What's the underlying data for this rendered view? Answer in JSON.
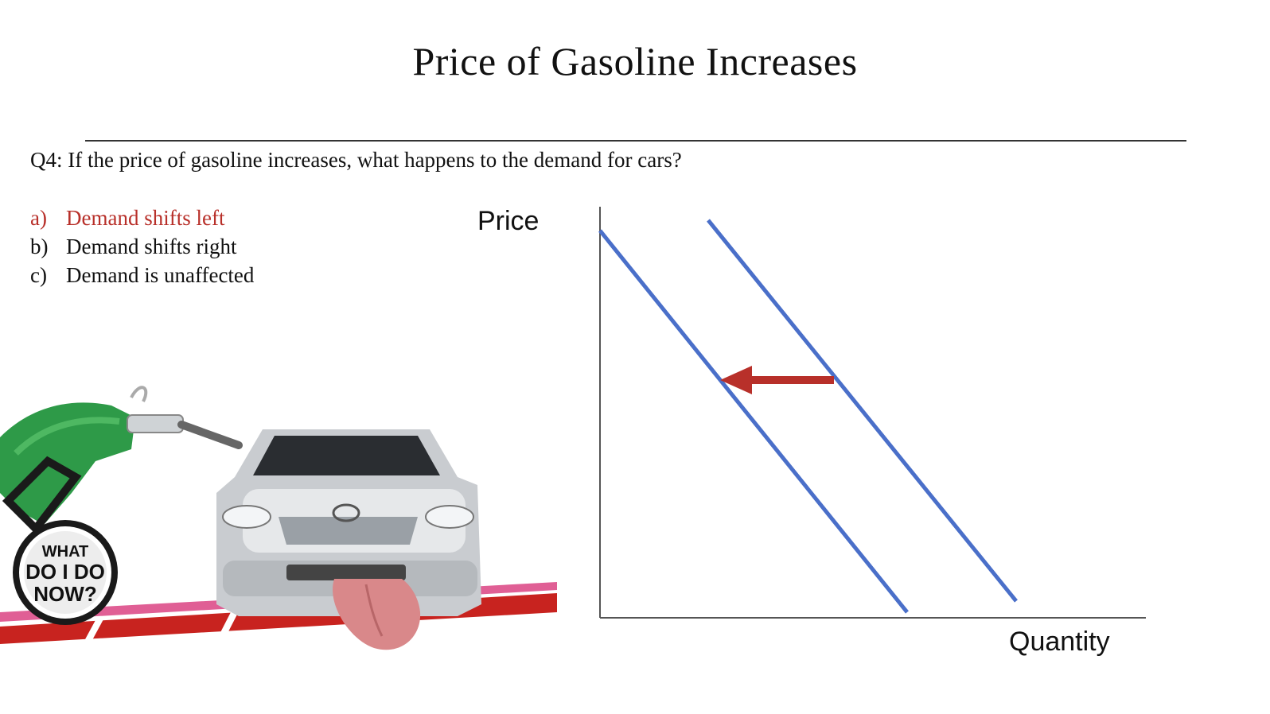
{
  "slide": {
    "title": "Price of Gasoline Increases",
    "question": "Q4: If the price of gasoline increases, what happens to the demand for cars?",
    "options": [
      {
        "letter": "a)",
        "text": "Demand shifts left",
        "correct": true
      },
      {
        "letter": "b)",
        "text": "Demand shifts right",
        "correct": false
      },
      {
        "letter": "c)",
        "text": "Demand is unaffected",
        "correct": false
      }
    ]
  },
  "illustration": {
    "badge_lines": [
      "WHAT",
      "DO I DO",
      "NOW?"
    ],
    "pump_color": "#2e9a48",
    "car_color": "#c9ccd0",
    "road_color": "#c8231f"
  },
  "diagram": {
    "y_axis_label": "Price",
    "x_axis_label": "Quantity",
    "curve_color": "#4a6fc9",
    "arrow_color": "#b8302a",
    "shift_direction": "left"
  }
}
